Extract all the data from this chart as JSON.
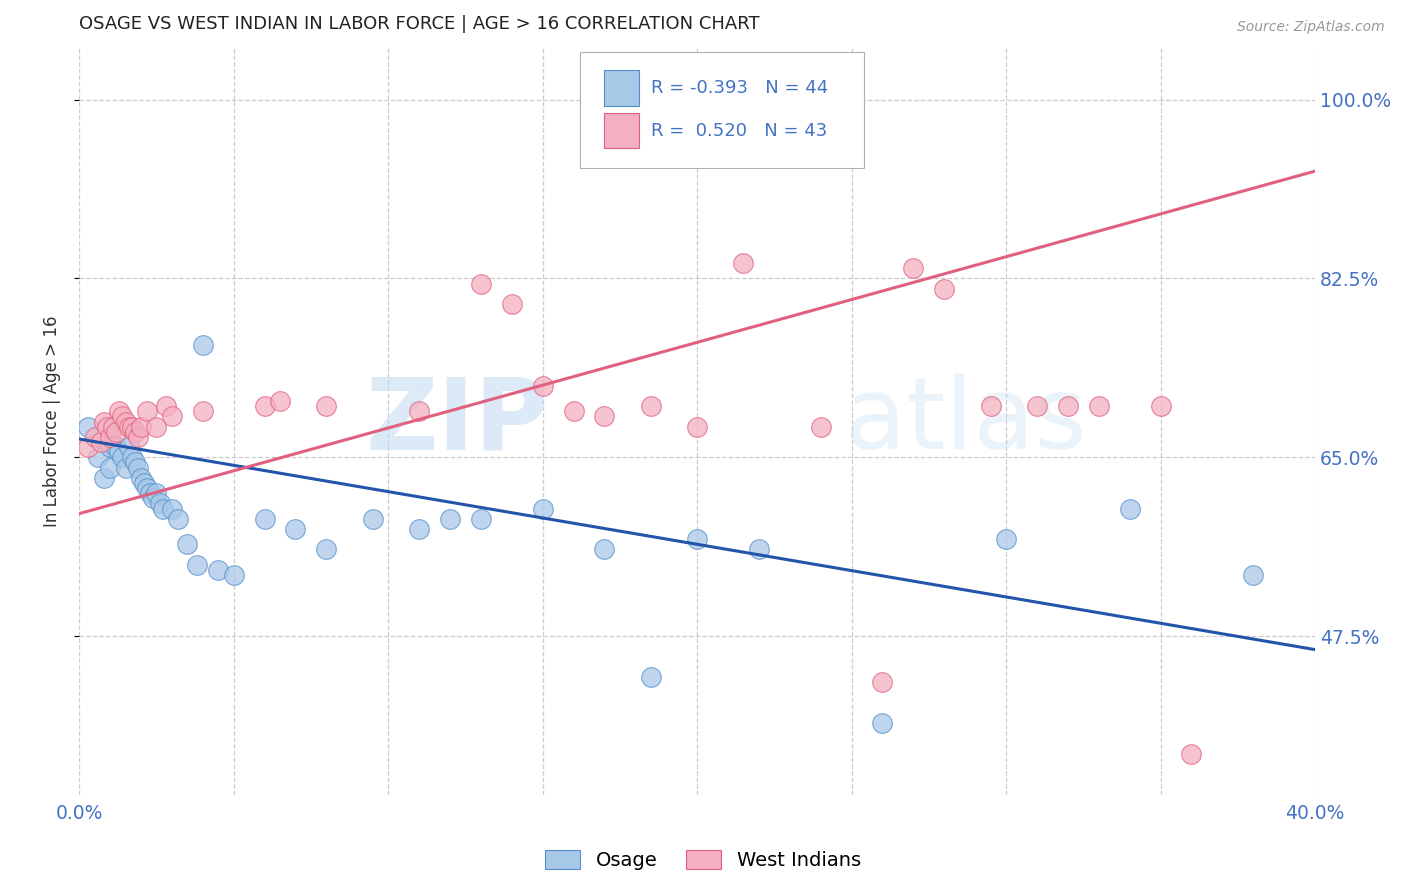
{
  "title": "OSAGE VS WEST INDIAN IN LABOR FORCE | AGE > 16 CORRELATION CHART",
  "source": "Source: ZipAtlas.com",
  "ylabel": "In Labor Force | Age > 16",
  "xlim": [
    0.0,
    0.4
  ],
  "ylim": [
    0.32,
    1.05
  ],
  "yticks": [
    0.475,
    0.65,
    0.825,
    1.0
  ],
  "yticklabels": [
    "47.5%",
    "65.0%",
    "82.5%",
    "100.0%"
  ],
  "legend_blue_R": "-0.393",
  "legend_blue_N": "44",
  "legend_pink_R": "0.520",
  "legend_pink_N": "43",
  "legend_label_blue": "Osage",
  "legend_label_pink": "West Indians",
  "watermark_ZIP": "ZIP",
  "watermark_atlas": "atlas",
  "blue_color": "#a8c8e8",
  "pink_color": "#f4b0c0",
  "blue_edge_color": "#5590cc",
  "pink_edge_color": "#e06080",
  "blue_line_color": "#2255aa",
  "pink_line_color": "#e06080",
  "tick_color": "#4472c4",
  "grid_color": "#cccccc",
  "title_color": "#222222",
  "axis_label_color": "#333333",
  "background_color": "#ffffff",
  "blue_scatter_x": [
    0.003,
    0.006,
    0.008,
    0.01,
    0.01,
    0.012,
    0.013,
    0.014,
    0.015,
    0.016,
    0.017,
    0.018,
    0.019,
    0.02,
    0.021,
    0.022,
    0.023,
    0.024,
    0.025,
    0.026,
    0.027,
    0.03,
    0.032,
    0.035,
    0.038,
    0.04,
    0.045,
    0.05,
    0.06,
    0.07,
    0.08,
    0.095,
    0.11,
    0.12,
    0.13,
    0.15,
    0.17,
    0.185,
    0.2,
    0.22,
    0.26,
    0.3,
    0.34,
    0.38
  ],
  "blue_scatter_y": [
    0.68,
    0.65,
    0.63,
    0.66,
    0.64,
    0.66,
    0.655,
    0.65,
    0.64,
    0.66,
    0.65,
    0.645,
    0.64,
    0.63,
    0.625,
    0.62,
    0.615,
    0.61,
    0.615,
    0.605,
    0.6,
    0.6,
    0.59,
    0.565,
    0.545,
    0.76,
    0.54,
    0.535,
    0.59,
    0.58,
    0.56,
    0.59,
    0.58,
    0.59,
    0.59,
    0.6,
    0.56,
    0.435,
    0.57,
    0.56,
    0.39,
    0.57,
    0.6,
    0.535
  ],
  "pink_scatter_x": [
    0.003,
    0.005,
    0.007,
    0.008,
    0.009,
    0.01,
    0.011,
    0.012,
    0.013,
    0.014,
    0.015,
    0.016,
    0.017,
    0.018,
    0.019,
    0.02,
    0.022,
    0.025,
    0.028,
    0.03,
    0.04,
    0.06,
    0.065,
    0.08,
    0.11,
    0.13,
    0.14,
    0.15,
    0.16,
    0.17,
    0.185,
    0.2,
    0.215,
    0.24,
    0.26,
    0.27,
    0.28,
    0.295,
    0.31,
    0.32,
    0.33,
    0.35,
    0.36
  ],
  "pink_scatter_y": [
    0.66,
    0.67,
    0.665,
    0.685,
    0.68,
    0.67,
    0.68,
    0.675,
    0.695,
    0.69,
    0.685,
    0.68,
    0.68,
    0.675,
    0.67,
    0.68,
    0.695,
    0.68,
    0.7,
    0.69,
    0.695,
    0.7,
    0.705,
    0.7,
    0.695,
    0.82,
    0.8,
    0.72,
    0.695,
    0.69,
    0.7,
    0.68,
    0.84,
    0.68,
    0.43,
    0.835,
    0.815,
    0.7,
    0.7,
    0.7,
    0.7,
    0.7,
    0.36
  ],
  "blue_line_x": [
    0.0,
    0.4
  ],
  "blue_line_y": [
    0.668,
    0.462
  ],
  "pink_line_x": [
    0.0,
    0.4
  ],
  "pink_line_y": [
    0.595,
    0.93
  ]
}
